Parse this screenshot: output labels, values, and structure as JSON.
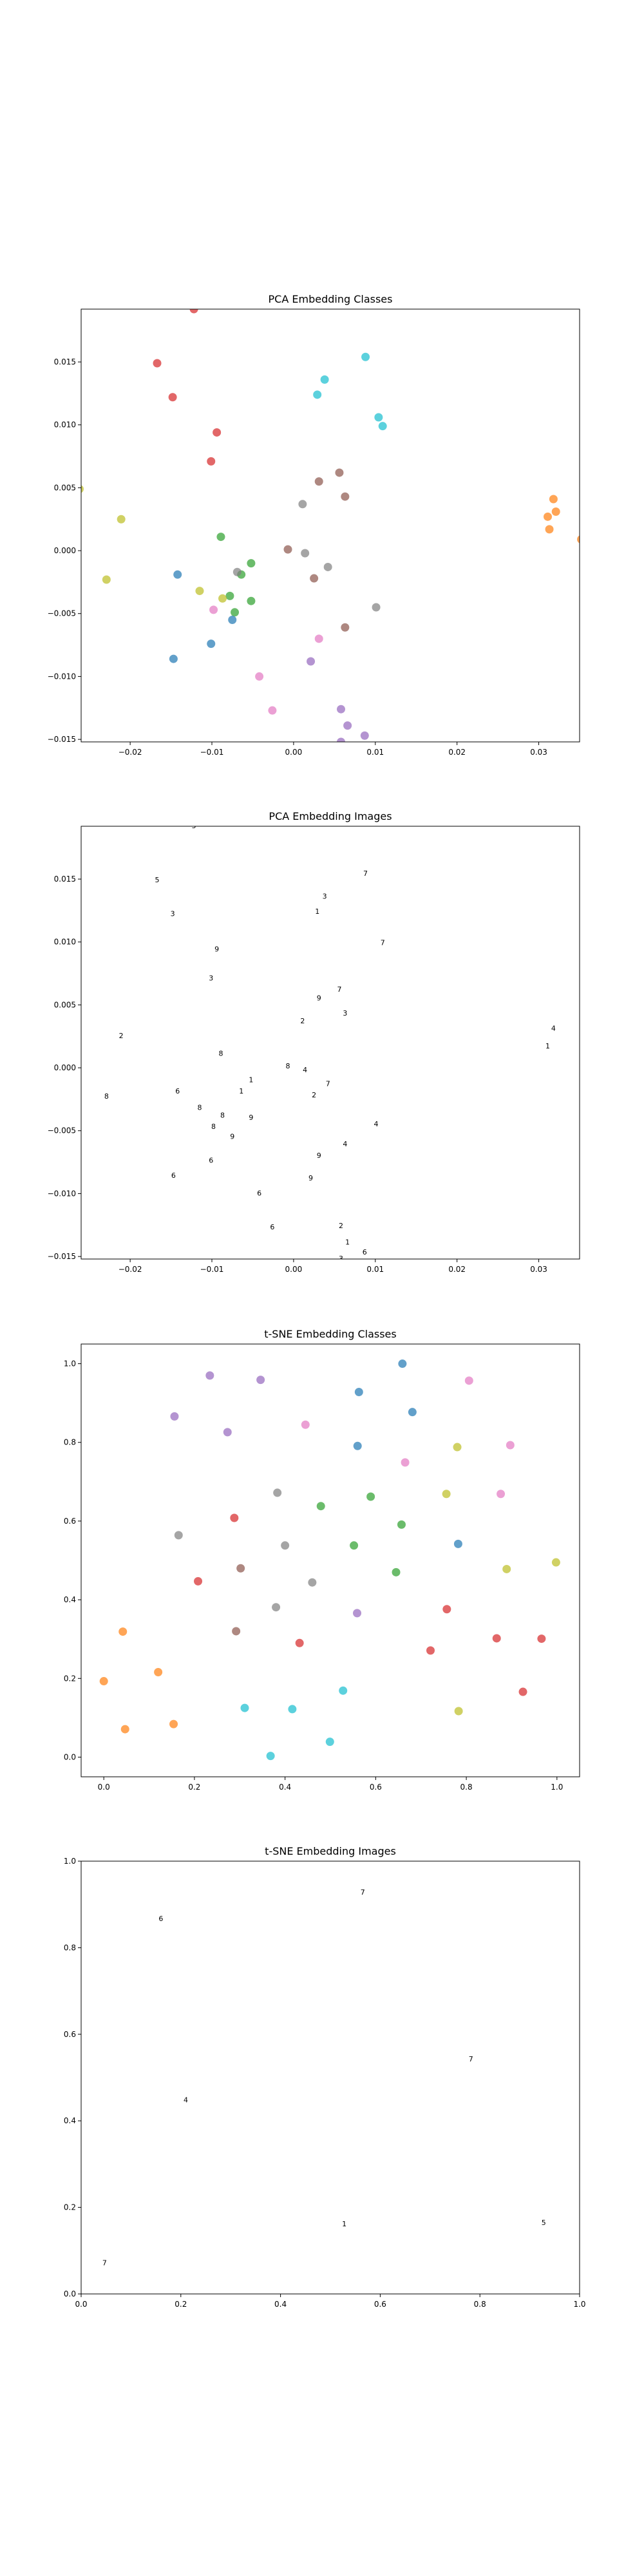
{
  "palette": [
    "#1f77b4",
    "#ff7f0e",
    "#2ca02c",
    "#d62728",
    "#9467bd",
    "#8c564b",
    "#e377c2",
    "#7f7f7f",
    "#bcbd22",
    "#17becf"
  ],
  "chart_data": [
    {
      "type": "scatter",
      "title": "PCA Embedding Classes",
      "xlim": [
        -0.026,
        0.035
      ],
      "ylim": [
        -0.0152,
        0.0192
      ],
      "xticks": [
        -0.02,
        -0.01,
        0.0,
        0.01,
        0.02,
        0.03
      ],
      "xtick_labels": [
        "−0.02",
        "−0.01",
        "0.00",
        "0.01",
        "0.02",
        "0.03"
      ],
      "yticks": [
        -0.015,
        -0.01,
        -0.005,
        0.0,
        0.005,
        0.01,
        0.015
      ],
      "ytick_labels": [
        "−0.015",
        "−0.010",
        "−0.005",
        "0.000",
        "0.005",
        "0.010",
        "0.015"
      ],
      "points": [
        {
          "x": -0.0122,
          "y": 0.0192,
          "c": 3
        },
        {
          "x": -0.0167,
          "y": 0.0149,
          "c": 3
        },
        {
          "x": -0.0148,
          "y": 0.0122,
          "c": 3
        },
        {
          "x": -0.0094,
          "y": 0.0094,
          "c": 3
        },
        {
          "x": -0.0101,
          "y": 0.0071,
          "c": 3
        },
        {
          "x": 0.0088,
          "y": 0.0154,
          "c": 9
        },
        {
          "x": 0.0038,
          "y": 0.0136,
          "c": 9
        },
        {
          "x": 0.0029,
          "y": 0.0124,
          "c": 9
        },
        {
          "x": 0.0104,
          "y": 0.0106,
          "c": 9
        },
        {
          "x": 0.0109,
          "y": 0.0099,
          "c": 9
        },
        {
          "x": 0.0056,
          "y": 0.0062,
          "c": 5
        },
        {
          "x": 0.0063,
          "y": 0.0043,
          "c": 5
        },
        {
          "x": 0.0011,
          "y": 0.0037,
          "c": 7
        },
        {
          "x": 0.0031,
          "y": 0.0055,
          "c": 5
        },
        {
          "x": 0.0318,
          "y": 0.0041,
          "c": 1
        },
        {
          "x": 0.0321,
          "y": 0.0031,
          "c": 1
        },
        {
          "x": 0.0311,
          "y": 0.0027,
          "c": 1
        },
        {
          "x": 0.0313,
          "y": 0.0017,
          "c": 1
        },
        {
          "x": 0.0352,
          "y": 0.0009,
          "c": 1
        },
        {
          "x": -0.0211,
          "y": 0.0025,
          "c": 8
        },
        {
          "x": -0.0262,
          "y": 0.0049,
          "c": 8
        },
        {
          "x": -0.0229,
          "y": -0.0023,
          "c": 8
        },
        {
          "x": -0.0089,
          "y": 0.0011,
          "c": 2
        },
        {
          "x": -0.0052,
          "y": -0.001,
          "c": 2
        },
        {
          "x": -0.0064,
          "y": -0.0019,
          "c": 2
        },
        {
          "x": -0.0078,
          "y": -0.0036,
          "c": 2
        },
        {
          "x": -0.0087,
          "y": -0.0038,
          "c": 8
        },
        {
          "x": -0.0115,
          "y": -0.0032,
          "c": 8
        },
        {
          "x": -0.0072,
          "y": -0.0049,
          "c": 2
        },
        {
          "x": -0.0052,
          "y": -0.004,
          "c": 2
        },
        {
          "x": -0.0142,
          "y": -0.0019,
          "c": 0
        },
        {
          "x": -0.0075,
          "y": -0.0055,
          "c": 0
        },
        {
          "x": -0.0101,
          "y": -0.0074,
          "c": 0
        },
        {
          "x": -0.0147,
          "y": -0.0086,
          "c": 0
        },
        {
          "x": -0.0098,
          "y": -0.0047,
          "c": 6
        },
        {
          "x": -0.0069,
          "y": -0.0017,
          "c": 7
        },
        {
          "x": -0.0007,
          "y": 0.0001,
          "c": 5
        },
        {
          "x": 0.0014,
          "y": -0.0002,
          "c": 7
        },
        {
          "x": 0.0042,
          "y": -0.0013,
          "c": 7
        },
        {
          "x": 0.0025,
          "y": -0.0022,
          "c": 5
        },
        {
          "x": 0.0101,
          "y": -0.0045,
          "c": 7
        },
        {
          "x": 0.0063,
          "y": -0.0061,
          "c": 5
        },
        {
          "x": 0.0031,
          "y": -0.007,
          "c": 6
        },
        {
          "x": -0.0042,
          "y": -0.01,
          "c": 6
        },
        {
          "x": -0.0026,
          "y": -0.0127,
          "c": 6
        },
        {
          "x": 0.0021,
          "y": -0.0088,
          "c": 4
        },
        {
          "x": 0.0058,
          "y": -0.0126,
          "c": 4
        },
        {
          "x": 0.0066,
          "y": -0.0139,
          "c": 4
        },
        {
          "x": 0.0087,
          "y": -0.0147,
          "c": 4
        },
        {
          "x": 0.0058,
          "y": -0.0152,
          "c": 4
        }
      ]
    },
    {
      "type": "scatter",
      "title": "PCA Embedding Images",
      "xlim": [
        -0.026,
        0.035
      ],
      "ylim": [
        -0.0152,
        0.0192
      ],
      "xticks": [
        -0.02,
        -0.01,
        0.0,
        0.01,
        0.02,
        0.03
      ],
      "xtick_labels": [
        "−0.02",
        "−0.01",
        "0.00",
        "0.01",
        "0.02",
        "0.03"
      ],
      "yticks": [
        -0.015,
        -0.01,
        -0.005,
        0.0,
        0.005,
        0.01,
        0.015
      ],
      "ytick_labels": [
        "−0.015",
        "−0.010",
        "−0.005",
        "0.000",
        "0.005",
        "0.010",
        "0.015"
      ],
      "points": [
        {
          "x": -0.0122,
          "y": 0.0192,
          "g": "5"
        },
        {
          "x": -0.0167,
          "y": 0.0149,
          "g": "5"
        },
        {
          "x": -0.0148,
          "y": 0.0122,
          "g": "3"
        },
        {
          "x": -0.0094,
          "y": 0.0094,
          "g": "9"
        },
        {
          "x": -0.0101,
          "y": 0.0071,
          "g": "3"
        },
        {
          "x": 0.0088,
          "y": 0.0154,
          "g": "7"
        },
        {
          "x": 0.0038,
          "y": 0.0136,
          "g": "3"
        },
        {
          "x": 0.0029,
          "y": 0.0124,
          "g": "1"
        },
        {
          "x": 0.0109,
          "y": 0.0099,
          "g": "7"
        },
        {
          "x": 0.0056,
          "y": 0.0062,
          "g": "7"
        },
        {
          "x": 0.0031,
          "y": 0.0055,
          "g": "9"
        },
        {
          "x": 0.0063,
          "y": 0.0043,
          "g": "3"
        },
        {
          "x": 0.0011,
          "y": 0.0037,
          "g": "2"
        },
        {
          "x": 0.0318,
          "y": 0.0031,
          "g": "4"
        },
        {
          "x": 0.0311,
          "y": 0.0017,
          "g": "1"
        },
        {
          "x": 0.0352,
          "y": 0.0009,
          "g": "1"
        },
        {
          "x": -0.0211,
          "y": 0.0025,
          "g": "2"
        },
        {
          "x": -0.0262,
          "y": 0.0049,
          "g": "4"
        },
        {
          "x": -0.0229,
          "y": -0.0023,
          "g": "8"
        },
        {
          "x": -0.0089,
          "y": 0.0011,
          "g": "8"
        },
        {
          "x": -0.0007,
          "y": 0.0001,
          "g": "8"
        },
        {
          "x": 0.0014,
          "y": -0.0002,
          "g": "4"
        },
        {
          "x": 0.0042,
          "y": -0.0013,
          "g": "7"
        },
        {
          "x": 0.0025,
          "y": -0.0022,
          "g": "2"
        },
        {
          "x": -0.0052,
          "y": -0.001,
          "g": "1"
        },
        {
          "x": -0.0064,
          "y": -0.0019,
          "g": "1"
        },
        {
          "x": -0.0142,
          "y": -0.0019,
          "g": "6"
        },
        {
          "x": -0.0115,
          "y": -0.0032,
          "g": "8"
        },
        {
          "x": -0.0087,
          "y": -0.0038,
          "g": "8"
        },
        {
          "x": -0.0052,
          "y": -0.004,
          "g": "9"
        },
        {
          "x": -0.0098,
          "y": -0.0047,
          "g": "8"
        },
        {
          "x": -0.0075,
          "y": -0.0055,
          "g": "9"
        },
        {
          "x": 0.0101,
          "y": -0.0045,
          "g": "4"
        },
        {
          "x": 0.0063,
          "y": -0.0061,
          "g": "4"
        },
        {
          "x": -0.0101,
          "y": -0.0074,
          "g": "6"
        },
        {
          "x": -0.0147,
          "y": -0.0086,
          "g": "6"
        },
        {
          "x": 0.0031,
          "y": -0.007,
          "g": "9"
        },
        {
          "x": 0.0021,
          "y": -0.0088,
          "g": "9"
        },
        {
          "x": -0.0042,
          "y": -0.01,
          "g": "6"
        },
        {
          "x": -0.0026,
          "y": -0.0127,
          "g": "6"
        },
        {
          "x": 0.0058,
          "y": -0.0126,
          "g": "2"
        },
        {
          "x": 0.0066,
          "y": -0.0139,
          "g": "1"
        },
        {
          "x": 0.0087,
          "y": -0.0147,
          "g": "6"
        },
        {
          "x": 0.0058,
          "y": -0.0152,
          "g": "3"
        }
      ]
    },
    {
      "type": "scatter",
      "title": "t-SNE Embedding Classes",
      "xlim": [
        -0.05,
        1.05
      ],
      "ylim": [
        -0.05,
        1.05
      ],
      "xticks": [
        0.0,
        0.2,
        0.4,
        0.6,
        0.8,
        1.0
      ],
      "xtick_labels": [
        "0.0",
        "0.2",
        "0.4",
        "0.6",
        "0.8",
        "1.0"
      ],
      "yticks": [
        0.0,
        0.2,
        0.4,
        0.6,
        0.8,
        1.0
      ],
      "ytick_labels": [
        "0.0",
        "0.2",
        "0.4",
        "0.6",
        "0.8",
        "1.0"
      ],
      "points": [
        {
          "x": 0.234,
          "y": 0.97,
          "c": 4
        },
        {
          "x": 0.346,
          "y": 0.959,
          "c": 4
        },
        {
          "x": 0.156,
          "y": 0.866,
          "c": 4
        },
        {
          "x": 0.273,
          "y": 0.826,
          "c": 4
        },
        {
          "x": 0.559,
          "y": 0.366,
          "c": 4
        },
        {
          "x": 0.659,
          "y": 1.0,
          "c": 0
        },
        {
          "x": 0.563,
          "y": 0.928,
          "c": 0
        },
        {
          "x": 0.681,
          "y": 0.877,
          "c": 0
        },
        {
          "x": 0.56,
          "y": 0.791,
          "c": 0
        },
        {
          "x": 0.782,
          "y": 0.542,
          "c": 0
        },
        {
          "x": 0.806,
          "y": 0.957,
          "c": 6
        },
        {
          "x": 0.445,
          "y": 0.845,
          "c": 6
        },
        {
          "x": 0.665,
          "y": 0.749,
          "c": 6
        },
        {
          "x": 0.897,
          "y": 0.793,
          "c": 6
        },
        {
          "x": 0.876,
          "y": 0.669,
          "c": 6
        },
        {
          "x": 0.78,
          "y": 0.788,
          "c": 8
        },
        {
          "x": 0.756,
          "y": 0.669,
          "c": 8
        },
        {
          "x": 0.998,
          "y": 0.495,
          "c": 8
        },
        {
          "x": 0.889,
          "y": 0.478,
          "c": 8
        },
        {
          "x": 0.783,
          "y": 0.117,
          "c": 8
        },
        {
          "x": 0.383,
          "y": 0.672,
          "c": 7
        },
        {
          "x": 0.165,
          "y": 0.564,
          "c": 7
        },
        {
          "x": 0.4,
          "y": 0.538,
          "c": 7
        },
        {
          "x": 0.46,
          "y": 0.444,
          "c": 7
        },
        {
          "x": 0.38,
          "y": 0.381,
          "c": 7
        },
        {
          "x": 0.479,
          "y": 0.638,
          "c": 2
        },
        {
          "x": 0.589,
          "y": 0.662,
          "c": 2
        },
        {
          "x": 0.657,
          "y": 0.591,
          "c": 2
        },
        {
          "x": 0.552,
          "y": 0.538,
          "c": 2
        },
        {
          "x": 0.645,
          "y": 0.47,
          "c": 2
        },
        {
          "x": 0.288,
          "y": 0.608,
          "c": 3
        },
        {
          "x": 0.208,
          "y": 0.447,
          "c": 3
        },
        {
          "x": 0.432,
          "y": 0.29,
          "c": 3
        },
        {
          "x": 0.757,
          "y": 0.376,
          "c": 3
        },
        {
          "x": 0.721,
          "y": 0.271,
          "c": 3
        },
        {
          "x": 0.867,
          "y": 0.302,
          "c": 3
        },
        {
          "x": 0.966,
          "y": 0.301,
          "c": 3
        },
        {
          "x": 0.925,
          "y": 0.166,
          "c": 3
        },
        {
          "x": 0.302,
          "y": 0.48,
          "c": 5
        },
        {
          "x": 0.292,
          "y": 0.32,
          "c": 5
        },
        {
          "x": 0.042,
          "y": 0.319,
          "c": 1
        },
        {
          "x": 0.0,
          "y": 0.193,
          "c": 1
        },
        {
          "x": 0.12,
          "y": 0.216,
          "c": 1
        },
        {
          "x": 0.047,
          "y": 0.071,
          "c": 1
        },
        {
          "x": 0.154,
          "y": 0.084,
          "c": 1
        },
        {
          "x": 0.311,
          "y": 0.125,
          "c": 9
        },
        {
          "x": 0.416,
          "y": 0.122,
          "c": 9
        },
        {
          "x": 0.528,
          "y": 0.169,
          "c": 9
        },
        {
          "x": 0.499,
          "y": 0.039,
          "c": 9
        },
        {
          "x": 0.368,
          "y": 0.003,
          "c": 9
        }
      ]
    },
    {
      "type": "scatter",
      "title": "t-SNE Embedding Images",
      "xlim": [
        0.0,
        1.0
      ],
      "ylim": [
        0.0,
        1.0
      ],
      "xticks": [
        0.0,
        0.2,
        0.4,
        0.6,
        0.8,
        1.0
      ],
      "xtick_labels": [
        "0.0",
        "0.2",
        "0.4",
        "0.6",
        "0.8",
        "1.0"
      ],
      "yticks": [
        0.0,
        0.2,
        0.4,
        0.6,
        0.8,
        1.0
      ],
      "ytick_labels": [
        "0.0",
        "0.2",
        "0.4",
        "0.6",
        "0.8",
        "1.0"
      ],
      "points": [
        {
          "x": 0.16,
          "y": 0.866,
          "g": "6"
        },
        {
          "x": 0.565,
          "y": 0.927,
          "g": "7"
        },
        {
          "x": 0.21,
          "y": 0.447,
          "g": "4"
        },
        {
          "x": 0.782,
          "y": 0.542,
          "g": "7"
        },
        {
          "x": 0.528,
          "y": 0.161,
          "g": "1"
        },
        {
          "x": 0.928,
          "y": 0.164,
          "g": "5"
        },
        {
          "x": 0.047,
          "y": 0.071,
          "g": "7"
        }
      ]
    }
  ]
}
